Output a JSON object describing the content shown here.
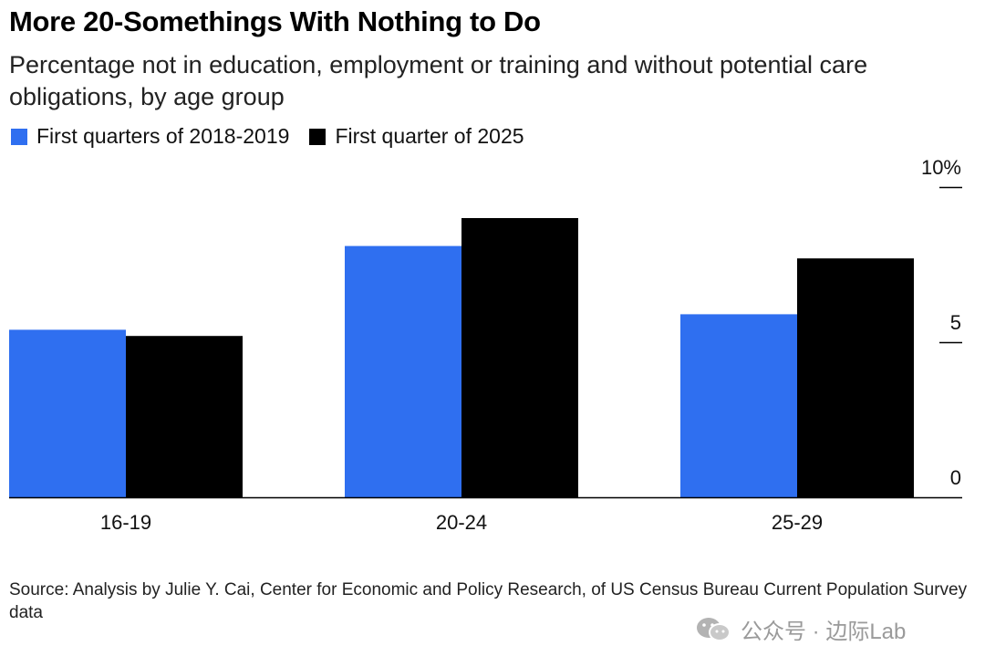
{
  "chart_data": {
    "type": "bar",
    "title": "More 20-Somethings With Nothing to Do",
    "subtitle": "Percentage not in education, employment or training and without potential care obligations, by age group",
    "categories": [
      "16-19",
      "20-24",
      "25-29"
    ],
    "series": [
      {
        "name": "First quarters of 2018-2019",
        "values": [
          5.4,
          8.1,
          5.9
        ],
        "color": "#2f6ff0"
      },
      {
        "name": "First quarter of 2025",
        "values": [
          5.2,
          9.0,
          7.7
        ],
        "color": "#000000"
      }
    ],
    "ylim": [
      0,
      10
    ],
    "yticks": [
      {
        "value": 10,
        "label": "10%"
      },
      {
        "value": 5,
        "label": "5"
      },
      {
        "value": 0,
        "label": "0"
      }
    ],
    "axis_position": "right",
    "legend_position": "top-left",
    "grid": false
  },
  "source": "Source: Analysis by Julie Y. Cai, Center for Economic and Policy Research, of US Census Bureau Current Population Survey data",
  "watermark": {
    "text": "公众号 · 边际Lab",
    "icon": "wechat-icon"
  }
}
